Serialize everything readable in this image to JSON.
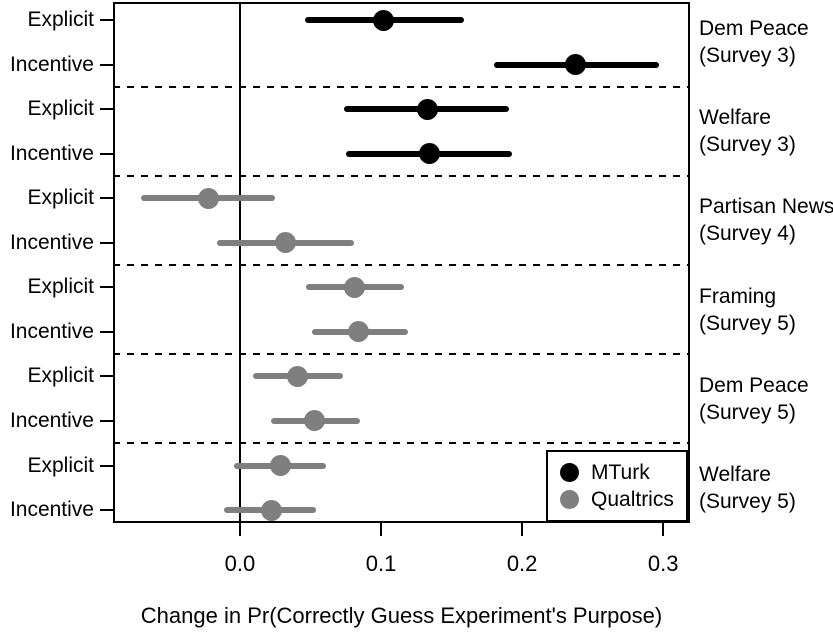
{
  "chart_data": {
    "type": "dot-whisker",
    "title": "",
    "xlabel": "Change in Pr(Correctly Guess Experiment's Purpose)",
    "ylabel": "",
    "x_tick_labels": [
      "0.0",
      "0.1",
      "0.2",
      "0.3"
    ],
    "x_tick_values": [
      0.0,
      0.1,
      0.2,
      0.3
    ],
    "xlim": [
      -0.09,
      0.319
    ],
    "zero_line": 0,
    "grid": false,
    "legend_position": "bottom-right",
    "legend": [
      {
        "label": "MTurk",
        "color": "#000000"
      },
      {
        "label": "Qualtrics",
        "color": "#7f7f7f"
      }
    ],
    "groups": [
      {
        "label_line1": "Dem Peace",
        "label_line2": "(Survey 3)",
        "sample": "MTurk",
        "rows": [
          {
            "label": "Explicit",
            "estimate": 0.102,
            "ci_low": 0.046,
            "ci_high": 0.159
          },
          {
            "label": "Incentive",
            "estimate": 0.238,
            "ci_low": 0.18,
            "ci_high": 0.297
          }
        ]
      },
      {
        "label_line1": "Welfare",
        "label_line2": "(Survey 3)",
        "sample": "MTurk",
        "rows": [
          {
            "label": "Explicit",
            "estimate": 0.133,
            "ci_low": 0.074,
            "ci_high": 0.191
          },
          {
            "label": "Incentive",
            "estimate": 0.134,
            "ci_low": 0.075,
            "ci_high": 0.193
          }
        ]
      },
      {
        "label_line1": "Partisan News",
        "label_line2": "(Survey 4)",
        "sample": "Qualtrics",
        "rows": [
          {
            "label": "Explicit",
            "estimate": -0.022,
            "ci_low": -0.07,
            "ci_high": 0.025
          },
          {
            "label": "Incentive",
            "estimate": 0.032,
            "ci_low": -0.016,
            "ci_high": 0.081
          }
        ]
      },
      {
        "label_line1": "Framing",
        "label_line2": "(Survey 5)",
        "sample": "Qualtrics",
        "rows": [
          {
            "label": "Explicit",
            "estimate": 0.081,
            "ci_low": 0.047,
            "ci_high": 0.116
          },
          {
            "label": "Incentive",
            "estimate": 0.084,
            "ci_low": 0.051,
            "ci_high": 0.119
          }
        ]
      },
      {
        "label_line1": "Dem Peace",
        "label_line2": "(Survey 5)",
        "sample": "Qualtrics",
        "rows": [
          {
            "label": "Explicit",
            "estimate": 0.041,
            "ci_low": 0.009,
            "ci_high": 0.073
          },
          {
            "label": "Incentive",
            "estimate": 0.053,
            "ci_low": 0.022,
            "ci_high": 0.085
          }
        ]
      },
      {
        "label_line1": "Welfare",
        "label_line2": "(Survey 5)",
        "sample": "Qualtrics",
        "rows": [
          {
            "label": "Explicit",
            "estimate": 0.029,
            "ci_low": -0.004,
            "ci_high": 0.061
          },
          {
            "label": "Incentive",
            "estimate": 0.022,
            "ci_low": -0.011,
            "ci_high": 0.054
          }
        ]
      }
    ]
  }
}
